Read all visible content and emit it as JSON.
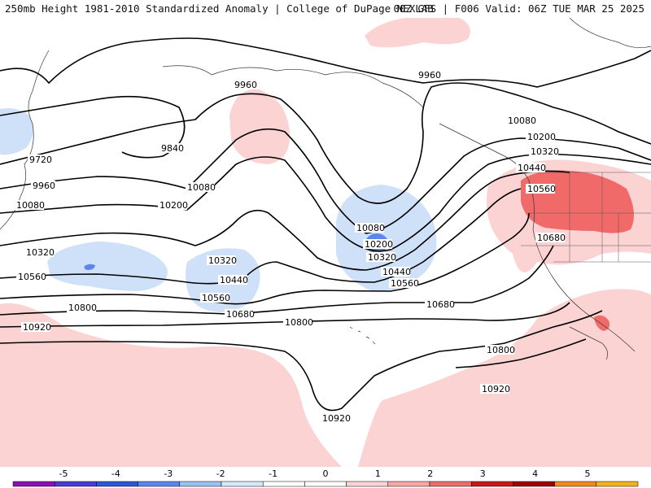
{
  "header": {
    "left": "250mb Height 1981-2010 Standardized Anomaly | College of DuPage NEXLAB",
    "right": "00Z GFS | F006 Valid: 06Z TUE MAR 25 2025"
  },
  "contour_labels": [
    {
      "id": "9960a",
      "text": "9960"
    },
    {
      "id": "9960b",
      "text": "9960"
    },
    {
      "id": "9840",
      "text": "9840"
    },
    {
      "id": "9720",
      "text": "9720"
    },
    {
      "id": "9960c",
      "text": "9960"
    },
    {
      "id": "10080a",
      "text": "10080"
    },
    {
      "id": "10080b",
      "text": "10080"
    },
    {
      "id": "10200a",
      "text": "10200"
    },
    {
      "id": "10080c",
      "text": "10080"
    },
    {
      "id": "10200b",
      "text": "10200"
    },
    {
      "id": "10320a",
      "text": "10320"
    },
    {
      "id": "10080d",
      "text": "10080"
    },
    {
      "id": "10200c",
      "text": "10200"
    },
    {
      "id": "10320b",
      "text": "10320"
    },
    {
      "id": "10440a",
      "text": "10440"
    },
    {
      "id": "10560a",
      "text": "10560"
    },
    {
      "id": "10320c",
      "text": "10320"
    },
    {
      "id": "10560b",
      "text": "10560"
    },
    {
      "id": "10440b",
      "text": "10440"
    },
    {
      "id": "10320d",
      "text": "10320"
    },
    {
      "id": "10440c",
      "text": "10440"
    },
    {
      "id": "10560c",
      "text": "10560"
    },
    {
      "id": "10680a",
      "text": "10680"
    },
    {
      "id": "10560d",
      "text": "10560"
    },
    {
      "id": "10680b",
      "text": "10680"
    },
    {
      "id": "10680c",
      "text": "10680"
    },
    {
      "id": "10800a",
      "text": "10800"
    },
    {
      "id": "10800b",
      "text": "10800"
    },
    {
      "id": "10800c",
      "text": "10800"
    },
    {
      "id": "10920a",
      "text": "10920"
    },
    {
      "id": "10920b",
      "text": "10920"
    },
    {
      "id": "10920c",
      "text": "10920"
    }
  ],
  "colorbar": {
    "ticks": [
      "-5",
      "-4",
      "-3",
      "-2",
      "-1",
      "0",
      "1",
      "2",
      "3",
      "4",
      "5"
    ],
    "colors": [
      "#8a0fb8",
      "#4a3bd6",
      "#2b57d9",
      "#5c86ee",
      "#9cc0f4",
      "#d6e8fb",
      "#ffffff",
      "#ffffff",
      "#fbd3d3",
      "#f8a6a6",
      "#f06a6a",
      "#c81818",
      "#a00000",
      "#f08a20",
      "#f4b21a"
    ]
  }
}
